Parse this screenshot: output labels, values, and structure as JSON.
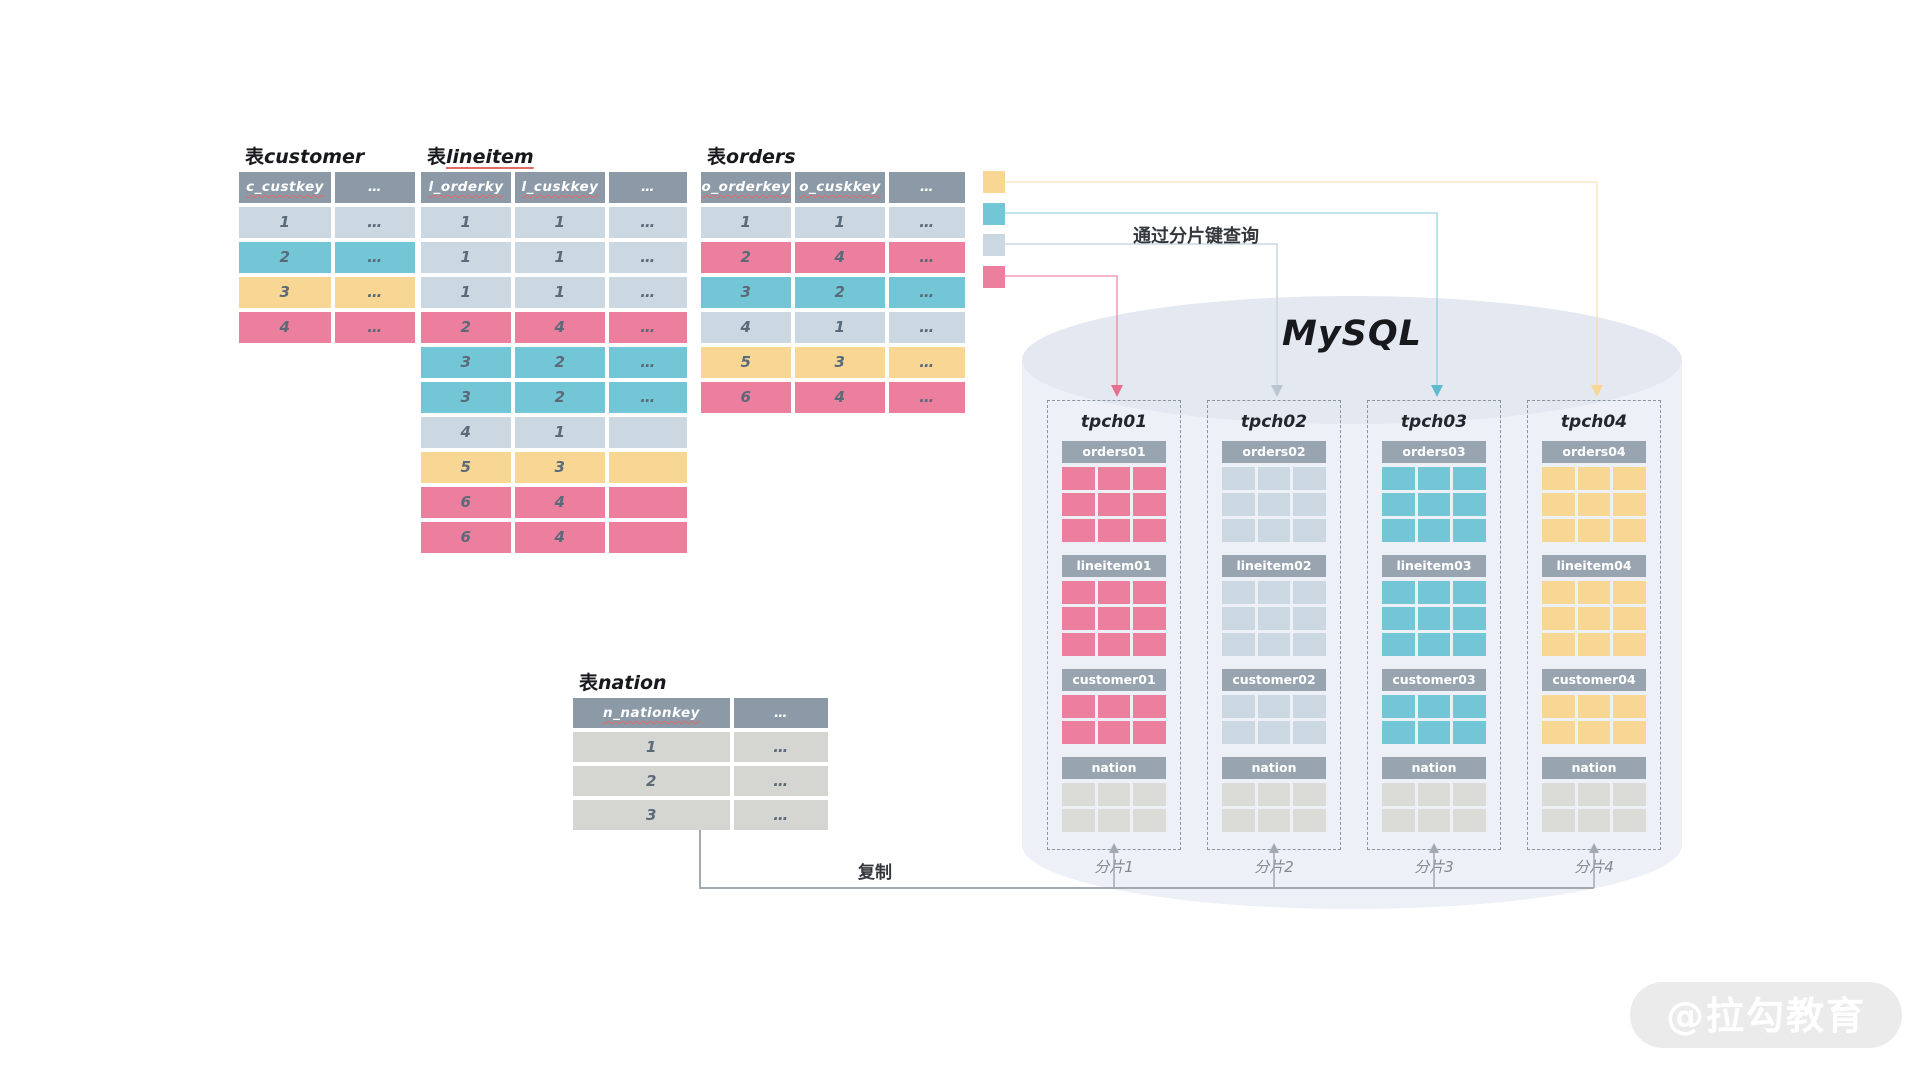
{
  "palette": {
    "pink": "#EC7F9D",
    "teal": "#73C6D6",
    "blue": "#CBD8E2",
    "yellow": "#F8D694",
    "gray": "#DBDBD7",
    "row_gray": "#D5D5D2",
    "header": "#8C9AA8",
    "bar": "#98A5B1"
  },
  "labels": {
    "query": "通过分片键查询",
    "mysql": "MySQL",
    "copy": "复制",
    "watermark": "@拉勾教育"
  },
  "legend": [
    {
      "color": "yellow"
    },
    {
      "color": "teal"
    },
    {
      "color": "blue"
    },
    {
      "color": "pink"
    }
  ],
  "tables": {
    "customer": {
      "title_prefix": "表",
      "title_name": "customer",
      "title_underline": false,
      "headers": [
        "c_custkey",
        "…"
      ],
      "rows": [
        {
          "cells": [
            "1",
            "…"
          ],
          "color": "blue"
        },
        {
          "cells": [
            "2",
            "…"
          ],
          "color": "teal"
        },
        {
          "cells": [
            "3",
            "…"
          ],
          "color": "yellow"
        },
        {
          "cells": [
            "4",
            "…"
          ],
          "color": "pink"
        }
      ]
    },
    "lineitem": {
      "title_prefix": "表",
      "title_name": "lineitem",
      "title_underline": true,
      "headers": [
        "l_orderky",
        "l_cuskkey",
        "…"
      ],
      "rows": [
        {
          "cells": [
            "1",
            "1",
            "…"
          ],
          "color": "blue"
        },
        {
          "cells": [
            "1",
            "1",
            "…"
          ],
          "color": "blue"
        },
        {
          "cells": [
            "1",
            "1",
            "…"
          ],
          "color": "blue"
        },
        {
          "cells": [
            "2",
            "4",
            "…"
          ],
          "color": "pink"
        },
        {
          "cells": [
            "3",
            "2",
            "…"
          ],
          "color": "teal"
        },
        {
          "cells": [
            "3",
            "2",
            "…"
          ],
          "color": "teal"
        },
        {
          "cells": [
            "4",
            "1",
            ""
          ],
          "color": "blue"
        },
        {
          "cells": [
            "5",
            "3",
            ""
          ],
          "color": "yellow"
        },
        {
          "cells": [
            "6",
            "4",
            ""
          ],
          "color": "pink"
        },
        {
          "cells": [
            "6",
            "4",
            ""
          ],
          "color": "pink"
        }
      ]
    },
    "orders": {
      "title_prefix": "表",
      "title_name": "orders",
      "title_underline": false,
      "headers": [
        "o_orderkey",
        "o_cuskkey",
        "…"
      ],
      "rows": [
        {
          "cells": [
            "1",
            "1",
            "…"
          ],
          "color": "blue"
        },
        {
          "cells": [
            "2",
            "4",
            "…"
          ],
          "color": "pink"
        },
        {
          "cells": [
            "3",
            "2",
            "…"
          ],
          "color": "teal"
        },
        {
          "cells": [
            "4",
            "1",
            "…"
          ],
          "color": "blue"
        },
        {
          "cells": [
            "5",
            "3",
            "…"
          ],
          "color": "yellow"
        },
        {
          "cells": [
            "6",
            "4",
            "…"
          ],
          "color": "pink"
        }
      ]
    },
    "nation": {
      "title_prefix": "表",
      "title_name": "nation",
      "title_underline": false,
      "headers": [
        "n_nationkey",
        "…"
      ],
      "rows": [
        {
          "cells": [
            "1",
            "…"
          ],
          "color": "row_gray"
        },
        {
          "cells": [
            "2",
            "…"
          ],
          "color": "row_gray"
        },
        {
          "cells": [
            "3",
            "…"
          ],
          "color": "row_gray"
        }
      ]
    }
  },
  "shards": [
    {
      "name": "tpch01",
      "caption": "分片1",
      "color": "pink",
      "sections": [
        {
          "label": "orders01",
          "rows": 3,
          "use_shard_color": true
        },
        {
          "label": "lineitem01",
          "rows": 3,
          "use_shard_color": true
        },
        {
          "label": "customer01",
          "rows": 2,
          "use_shard_color": true
        },
        {
          "label": "nation",
          "rows": 2,
          "use_shard_color": false
        }
      ]
    },
    {
      "name": "tpch02",
      "caption": "分片2",
      "color": "blue",
      "sections": [
        {
          "label": "orders02",
          "rows": 3,
          "use_shard_color": true
        },
        {
          "label": "lineitem02",
          "rows": 3,
          "use_shard_color": true
        },
        {
          "label": "customer02",
          "rows": 2,
          "use_shard_color": true
        },
        {
          "label": "nation",
          "rows": 2,
          "use_shard_color": false
        }
      ]
    },
    {
      "name": "tpch03",
      "caption": "分片3",
      "color": "teal",
      "sections": [
        {
          "label": "orders03",
          "rows": 3,
          "use_shard_color": true
        },
        {
          "label": "lineitem03",
          "rows": 3,
          "use_shard_color": true
        },
        {
          "label": "customer03",
          "rows": 2,
          "use_shard_color": true
        },
        {
          "label": "nation",
          "rows": 2,
          "use_shard_color": false
        }
      ]
    },
    {
      "name": "tpch04",
      "caption": "分片4",
      "color": "yellow",
      "sections": [
        {
          "label": "orders04",
          "rows": 3,
          "use_shard_color": true
        },
        {
          "label": "lineitem04",
          "rows": 3,
          "use_shard_color": true
        },
        {
          "label": "customer04",
          "rows": 2,
          "use_shard_color": true
        },
        {
          "label": "nation",
          "rows": 2,
          "use_shard_color": false
        }
      ]
    }
  ]
}
